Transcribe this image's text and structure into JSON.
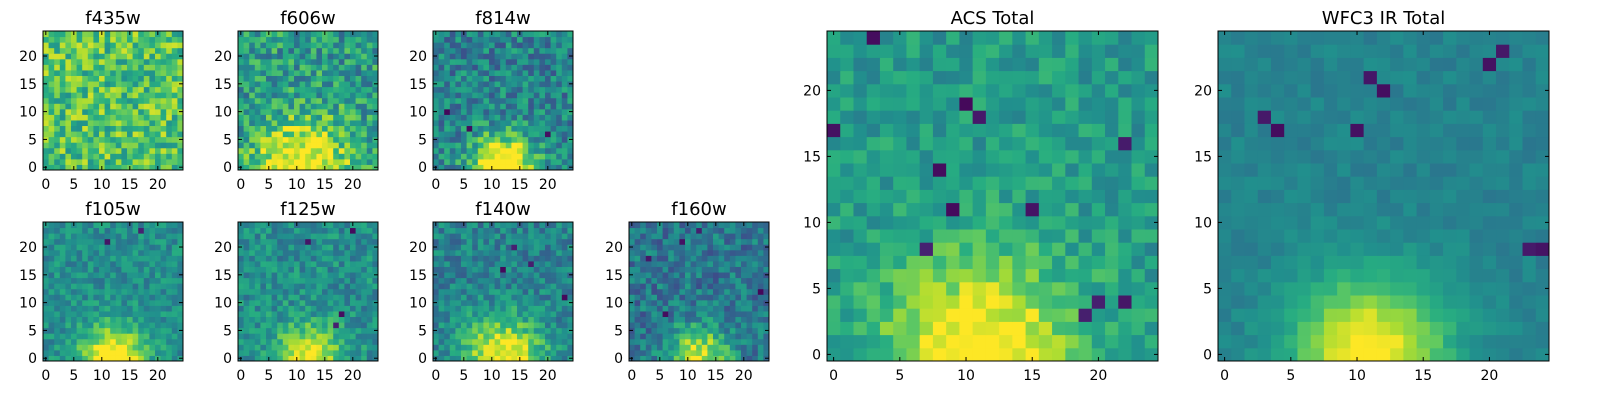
{
  "chart_data": [
    {
      "type": "heatmap",
      "title": "f435w",
      "xlim": [
        -0.5,
        24.5
      ],
      "ylim": [
        -0.5,
        24.5
      ],
      "x_ticks": [
        0,
        5,
        10,
        15,
        20
      ],
      "y_ticks": [
        0,
        5,
        10,
        15,
        20
      ],
      "colormap": "viridis",
      "peak": {
        "x": 12,
        "y": 0,
        "sigma": 6,
        "strength": 0.0
      },
      "base": 0.72,
      "noise": 0.22,
      "dark_spots": [],
      "seed": 11
    },
    {
      "type": "heatmap",
      "title": "f606w",
      "xlim": [
        -0.5,
        24.5
      ],
      "ylim": [
        -0.5,
        24.5
      ],
      "x_ticks": [
        0,
        5,
        10,
        15,
        20
      ],
      "y_ticks": [
        0,
        5,
        10,
        15,
        20
      ],
      "colormap": "viridis",
      "peak": {
        "x": 11,
        "y": 0,
        "sigma": 6,
        "strength": 0.55
      },
      "base": 0.55,
      "noise": 0.22,
      "dark_spots": [],
      "seed": 23
    },
    {
      "type": "heatmap",
      "title": "f814w",
      "xlim": [
        -0.5,
        24.5
      ],
      "ylim": [
        -0.5,
        24.5
      ],
      "x_ticks": [
        0,
        5,
        10,
        15,
        20
      ],
      "y_ticks": [
        0,
        5,
        10,
        15,
        20
      ],
      "colormap": "viridis",
      "peak": {
        "x": 12,
        "y": 0,
        "sigma": 4,
        "strength": 0.75
      },
      "base": 0.45,
      "noise": 0.2,
      "dark_spots": [
        [
          2,
          10
        ],
        [
          6,
          7
        ],
        [
          20,
          6
        ]
      ],
      "seed": 37
    },
    {
      "type": "heatmap",
      "title": "f105w",
      "xlim": [
        -0.5,
        24.5
      ],
      "ylim": [
        -0.5,
        24.5
      ],
      "x_ticks": [
        0,
        5,
        10,
        15,
        20
      ],
      "y_ticks": [
        0,
        5,
        10,
        15,
        20
      ],
      "colormap": "viridis",
      "peak": {
        "x": 12,
        "y": 0,
        "sigma": 4,
        "strength": 0.6
      },
      "base": 0.5,
      "noise": 0.13,
      "dark_spots": [
        [
          11,
          21
        ],
        [
          17,
          23
        ]
      ],
      "seed": 41
    },
    {
      "type": "heatmap",
      "title": "f125w",
      "xlim": [
        -0.5,
        24.5
      ],
      "ylim": [
        -0.5,
        24.5
      ],
      "x_ticks": [
        0,
        5,
        10,
        15,
        20
      ],
      "y_ticks": [
        0,
        5,
        10,
        15,
        20
      ],
      "colormap": "viridis",
      "peak": {
        "x": 12,
        "y": 0,
        "sigma": 4,
        "strength": 0.55
      },
      "base": 0.5,
      "noise": 0.15,
      "dark_spots": [
        [
          12,
          21
        ],
        [
          18,
          8
        ],
        [
          17,
          6
        ],
        [
          20,
          23
        ]
      ],
      "seed": 53
    },
    {
      "type": "heatmap",
      "title": "f140w",
      "xlim": [
        -0.5,
        24.5
      ],
      "ylim": [
        -0.5,
        24.5
      ],
      "x_ticks": [
        0,
        5,
        10,
        15,
        20
      ],
      "y_ticks": [
        0,
        5,
        10,
        15,
        20
      ],
      "colormap": "viridis",
      "peak": {
        "x": 12,
        "y": 0,
        "sigma": 5,
        "strength": 0.6
      },
      "base": 0.45,
      "noise": 0.15,
      "dark_spots": [
        [
          14,
          20
        ],
        [
          17,
          17
        ],
        [
          12,
          16
        ],
        [
          23,
          11
        ]
      ],
      "seed": 67
    },
    {
      "type": "heatmap",
      "title": "f160w",
      "xlim": [
        -0.5,
        24.5
      ],
      "ylim": [
        -0.5,
        24.5
      ],
      "x_ticks": [
        0,
        5,
        10,
        15,
        20
      ],
      "y_ticks": [
        0,
        5,
        10,
        15,
        20
      ],
      "colormap": "viridis",
      "peak": {
        "x": 12,
        "y": 0,
        "sigma": 4,
        "strength": 0.55
      },
      "base": 0.4,
      "noise": 0.17,
      "dark_spots": [
        [
          9,
          21
        ],
        [
          12,
          23
        ],
        [
          3,
          18
        ],
        [
          6,
          8
        ],
        [
          23,
          12
        ]
      ],
      "seed": 79
    },
    {
      "type": "heatmap",
      "title": "ACS Total",
      "xlim": [
        -0.5,
        24.5
      ],
      "ylim": [
        -0.5,
        24.5
      ],
      "x_ticks": [
        0,
        5,
        10,
        15,
        20
      ],
      "y_ticks": [
        0,
        5,
        10,
        15,
        20
      ],
      "colormap": "viridis",
      "peak": {
        "x": 11,
        "y": 0,
        "sigma": 5,
        "strength": 0.55
      },
      "base": 0.55,
      "noise": 0.12,
      "dark_spots": [
        [
          3,
          24
        ],
        [
          0,
          17
        ],
        [
          10,
          19
        ],
        [
          11,
          18
        ],
        [
          8,
          14
        ],
        [
          9,
          11
        ],
        [
          15,
          11
        ],
        [
          7,
          8
        ],
        [
          20,
          4
        ],
        [
          22,
          4
        ],
        [
          19,
          3
        ],
        [
          22,
          16
        ]
      ],
      "seed": 97
    },
    {
      "type": "heatmap",
      "title": "WFC3 IR Total",
      "xlim": [
        -0.5,
        24.5
      ],
      "ylim": [
        -0.5,
        24.5
      ],
      "x_ticks": [
        0,
        5,
        10,
        15,
        20
      ],
      "y_ticks": [
        0,
        5,
        10,
        15,
        20
      ],
      "colormap": "viridis",
      "peak": {
        "x": 11,
        "y": 0,
        "sigma": 4,
        "strength": 0.6
      },
      "base": 0.45,
      "noise": 0.05,
      "dark_spots": [
        [
          3,
          18
        ],
        [
          4,
          17
        ],
        [
          10,
          17
        ],
        [
          21,
          23
        ],
        [
          20,
          22
        ],
        [
          11,
          21
        ],
        [
          12,
          20
        ],
        [
          24,
          8
        ],
        [
          23,
          8
        ]
      ],
      "seed": 101
    }
  ]
}
